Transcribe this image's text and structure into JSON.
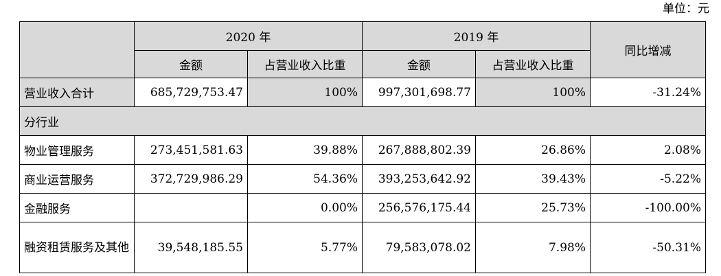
{
  "unit_label": "单位：元",
  "header": {
    "year_2020": "2020 年",
    "year_2019": "2019 年",
    "amount": "金额",
    "ratio": "占营业收入比重",
    "yoy": "同比增减"
  },
  "rows": [
    {
      "label": "营业收入合计",
      "amt2020": "685,729,753.47",
      "pct2020": "100%",
      "amt2019": "997,301,698.77",
      "pct2019": "100%",
      "yoy": "-31.24%"
    },
    {
      "label": "分行业"
    },
    {
      "label": "物业管理服务",
      "amt2020": "273,451,581.63",
      "pct2020": "39.88%",
      "amt2019": "267,888,802.39",
      "pct2019": "26.86%",
      "yoy": "2.08%"
    },
    {
      "label": "商业运营服务",
      "amt2020": "372,729,986.29",
      "pct2020": "54.36%",
      "amt2019": "393,253,642.92",
      "pct2019": "39.43%",
      "yoy": "-5.22%"
    },
    {
      "label": "金融服务",
      "amt2020": "",
      "pct2020": "0.00%",
      "amt2019": "256,576,175.44",
      "pct2019": "25.73%",
      "yoy": "-100.00%"
    },
    {
      "label": "融资租赁服务及其他",
      "amt2020": "39,548,185.55",
      "pct2020": "5.77%",
      "amt2019": "79,583,078.02",
      "pct2019": "7.98%",
      "yoy": "-50.31%"
    }
  ]
}
